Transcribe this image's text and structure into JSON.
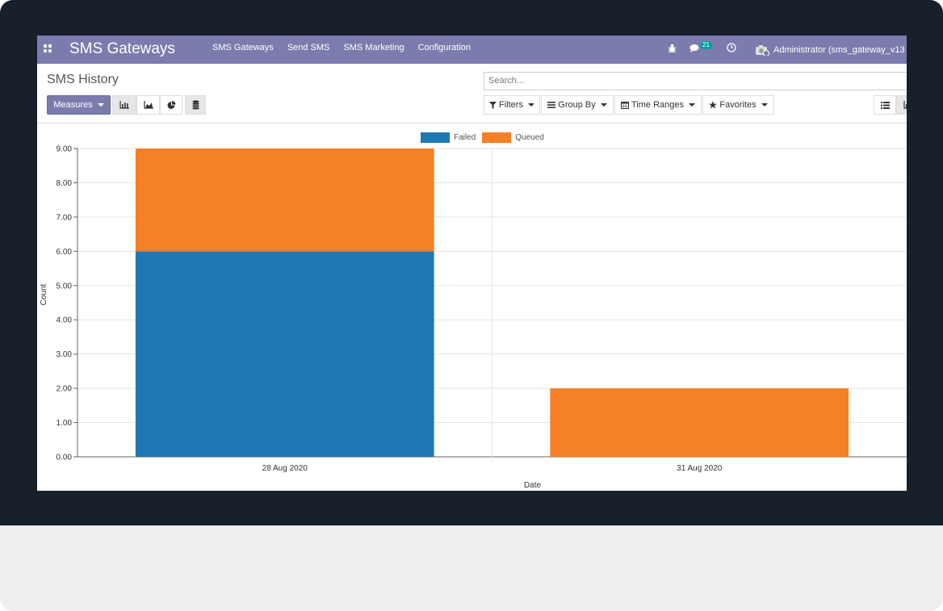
{
  "navbar": {
    "brand": "SMS Gateways",
    "menu": [
      "SMS Gateways",
      "Send SMS",
      "SMS Marketing",
      "Configuration"
    ],
    "message_count": "21",
    "user": "Administrator (sms_gateway_v13"
  },
  "control_panel": {
    "title": "SMS History",
    "measures_label": "Measures",
    "search_placeholder": "Search...",
    "filters_label": "Filters",
    "groupby_label": "Group By",
    "timeranges_label": "Time Ranges",
    "favorites_label": "Favorites"
  },
  "colors": {
    "navbar": "#7c7bad",
    "failed": "#1f77b4",
    "queued": "#f58025"
  },
  "chart_data": {
    "type": "bar",
    "stacked": true,
    "categories": [
      "28 Aug 2020",
      "31 Aug 2020"
    ],
    "series": [
      {
        "name": "Failed",
        "values": [
          6,
          0
        ],
        "color": "#1f77b4"
      },
      {
        "name": "Queued",
        "values": [
          3,
          2
        ],
        "color": "#f58025"
      }
    ],
    "xlabel": "Date",
    "ylabel": "Count",
    "ylim": [
      0,
      9
    ],
    "yticks": [
      "0.00",
      "1.00",
      "2.00",
      "3.00",
      "4.00",
      "5.00",
      "6.00",
      "7.00",
      "8.00",
      "9.00"
    ],
    "grid": true,
    "legend": "top-center"
  }
}
